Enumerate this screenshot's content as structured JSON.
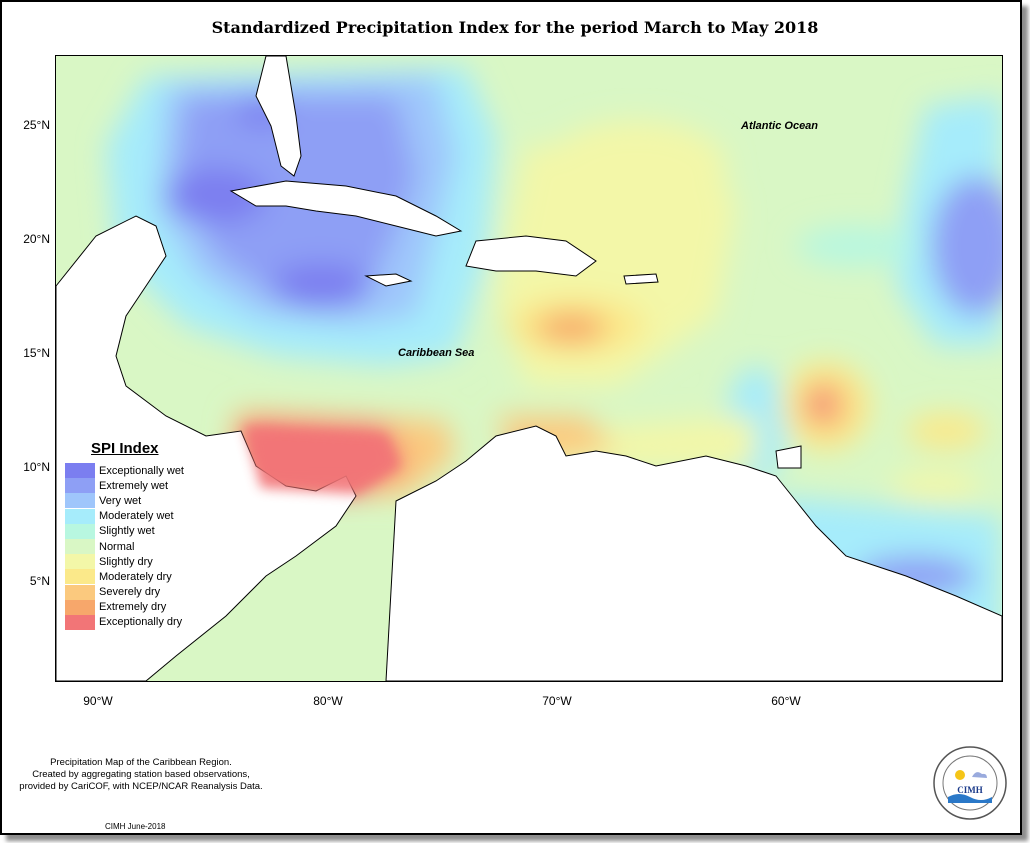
{
  "title": "Standardized Precipitation Index for the period March to May 2018",
  "axes": {
    "x_ticks": [
      "90°W",
      "80°W",
      "70°W",
      "60°W"
    ],
    "y_ticks": [
      "25°N",
      "20°N",
      "15°N",
      "10°N",
      "5°N"
    ]
  },
  "labels": {
    "atlantic": "Atlantic Ocean",
    "caribbean": "Caribbean Sea"
  },
  "legend": {
    "title": "SPI Index",
    "items": [
      {
        "label": "Exceptionally wet",
        "color": "#7b7ef0"
      },
      {
        "label": "Extremely wet",
        "color": "#8e9ff5"
      },
      {
        "label": "Very wet",
        "color": "#9fc6fb"
      },
      {
        "label": "Moderately wet",
        "color": "#a6ecfb"
      },
      {
        "label": "Slightly wet",
        "color": "#b8f7e0"
      },
      {
        "label": "Normal",
        "color": "#d9f7c5"
      },
      {
        "label": "Slightly dry",
        "color": "#f3f7a8"
      },
      {
        "label": "Moderately dry",
        "color": "#fbe98a"
      },
      {
        "label": "Severely dry",
        "color": "#fbc97e"
      },
      {
        "label": "Extremely dry",
        "color": "#f7a76b"
      },
      {
        "label": "Exceptionally dry",
        "color": "#f27577"
      }
    ]
  },
  "footnote": {
    "line1": "Precipitation Map of the Caribbean Region.",
    "line2": "Created by aggregating station based observations,",
    "line3": "provided by CariCOF, with NCEP/NCAR Reanalysis Data."
  },
  "credit": "CIMH June-2018",
  "logo": {
    "text": "CIMH",
    "icon": "cimh-logo-seal"
  }
}
